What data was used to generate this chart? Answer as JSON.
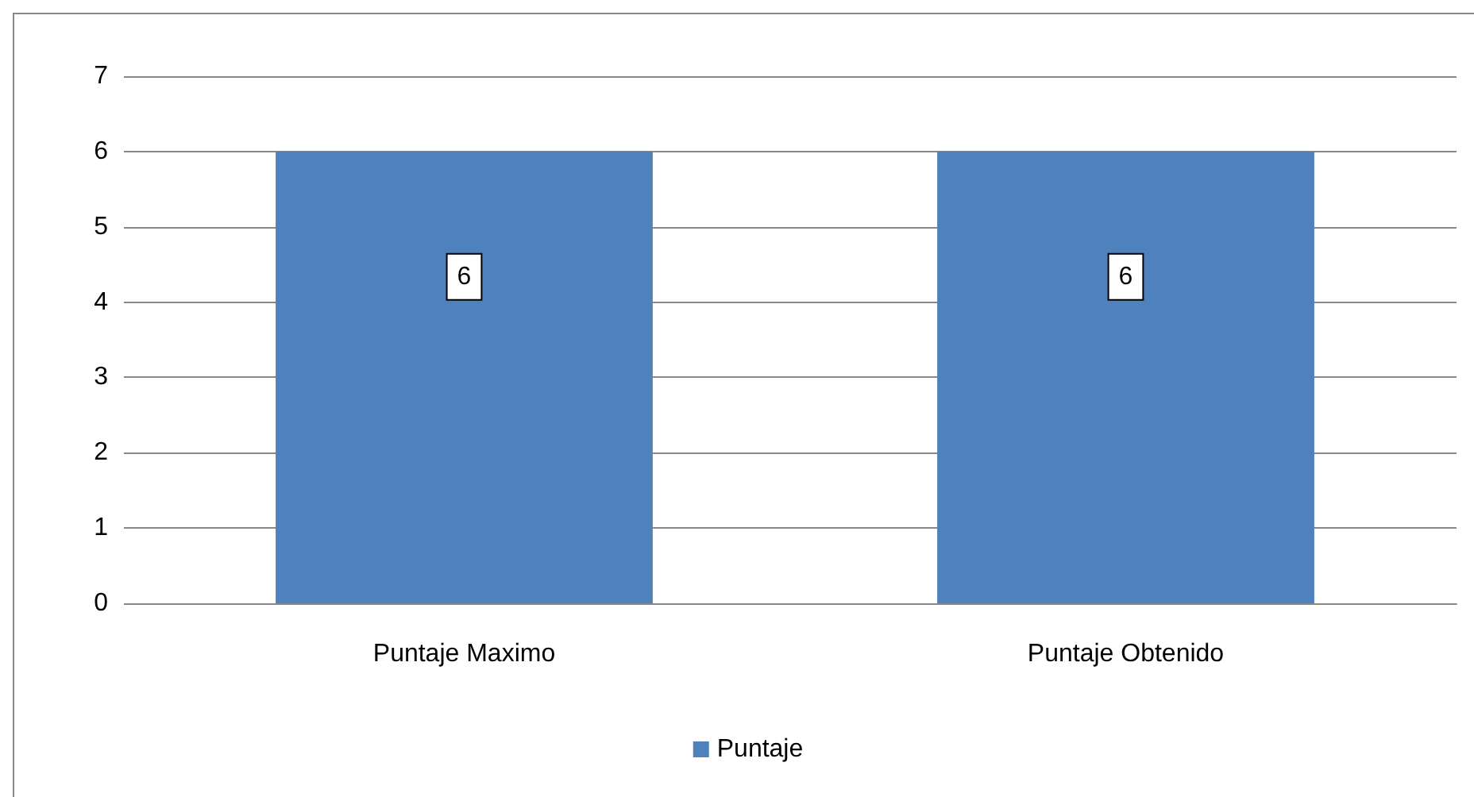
{
  "chart_data": {
    "type": "bar",
    "categories": [
      "Puntaje Maximo",
      "Puntaje Obtenido"
    ],
    "series": [
      {
        "name": "Puntaje",
        "color": "#4f81bd",
        "values": [
          6,
          6
        ]
      }
    ],
    "ylim": [
      0,
      7
    ],
    "yticks": [
      0,
      1,
      2,
      3,
      4,
      5,
      6,
      7
    ],
    "grid": "y",
    "legend": "bottom",
    "data_labels": true
  }
}
